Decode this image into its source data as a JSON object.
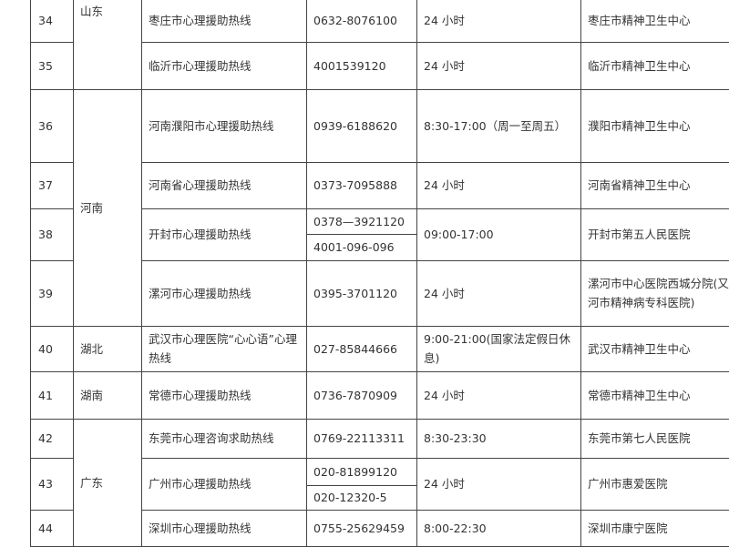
{
  "rows": [
    {
      "no": "34",
      "province": "山东",
      "name": "枣庄市心理援助热线",
      "phones": [
        "0632-8076100"
      ],
      "hours": "24 小时",
      "org": "枣庄市精神卫生中心"
    },
    {
      "no": "35",
      "province": "",
      "name": "临沂市心理援助热线",
      "phones": [
        "4001539120"
      ],
      "hours": "24 小时",
      "org": "临沂市精神卫生中心"
    },
    {
      "no": "36",
      "province": "河南",
      "name": "河南濮阳市心理援助热线",
      "phones": [
        "0939-6188620"
      ],
      "hours": "8:30-17:00（周一至周五）",
      "org": "濮阳市精神卫生中心"
    },
    {
      "no": "37",
      "province": "",
      "name": "河南省心理援助热线",
      "phones": [
        "0373-7095888"
      ],
      "hours": "24 小时",
      "org": "河南省精神卫生中心"
    },
    {
      "no": "38",
      "province": "",
      "name": "开封市心理援助热线",
      "phones": [
        "0378—3921120",
        "4001-096-096"
      ],
      "hours": "09:00-17:00",
      "org": "开封市第五人民医院"
    },
    {
      "no": "39",
      "province": "",
      "name": "漯河市心理援助热线",
      "phones": [
        "0395-3701120"
      ],
      "hours": "24 小时",
      "org": "漯河市中心医院西城分院(又名漯河市精神病专科医院)"
    },
    {
      "no": "40",
      "province": "湖北",
      "name": "武汉市心理医院“心心语”心理热线",
      "phones": [
        "027-85844666"
      ],
      "hours": "9:00-21:00(国家法定假日休息)",
      "org": "武汉市精神卫生中心"
    },
    {
      "no": "41",
      "province": "湖南",
      "name": "常德市心理援助热线",
      "phones": [
        "0736-7870909"
      ],
      "hours": "24 小时",
      "org": "常德市精神卫生中心"
    },
    {
      "no": "42",
      "province": "广东",
      "name": "东莞市心理咨询求助热线",
      "phones": [
        "0769-22113311"
      ],
      "hours": "8:30-23:30",
      "org": "东莞市第七人民医院"
    },
    {
      "no": "43",
      "province": "",
      "name": "广州市心理援助热线",
      "phones": [
        "020-81899120",
        "020-12320-5"
      ],
      "hours": "24 小时",
      "org": "广州市惠爱医院"
    },
    {
      "no": "44",
      "province": "",
      "name": "深圳市心理援助热线",
      "phones": [
        "0755-25629459"
      ],
      "hours": "8:00-22:30",
      "org": "深圳市康宁医院"
    }
  ]
}
